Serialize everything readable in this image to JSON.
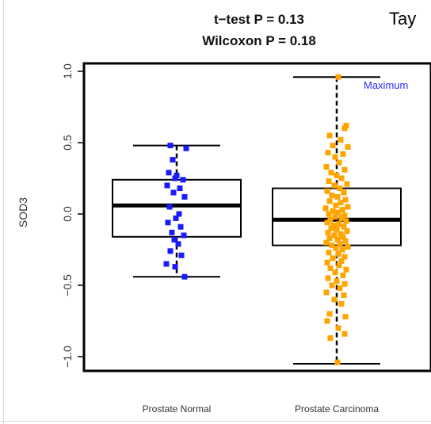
{
  "chart_data": {
    "type": "box",
    "title_lines": [
      "t−test P = 0.13",
      "Wilcoxon P = 0.18"
    ],
    "corner_text": "Tay",
    "ylabel": "SOD3",
    "ylim": [
      -1.2,
      1.1
    ],
    "yticks": [
      -1.0,
      -0.5,
      0.0,
      0.5,
      1.0
    ],
    "ytick_labels": [
      "−1.0",
      "−0.5",
      "0.0",
      "0.5",
      "1.0"
    ],
    "annotation": {
      "text": "Maximum",
      "color": "#2b2bff"
    },
    "categories": [
      "Prostate Normal",
      "Prostate Carcinoma"
    ],
    "series": [
      {
        "color": "#1a1aff",
        "box": {
          "whisker_low": -0.44,
          "q1": -0.16,
          "median": 0.06,
          "q3": 0.24,
          "whisker_high": 0.48
        },
        "points": [
          {
            "dx": -0.08,
            "y": 0.48
          },
          {
            "dx": 0.12,
            "y": 0.46
          },
          {
            "dx": -0.05,
            "y": 0.38
          },
          {
            "dx": -0.1,
            "y": 0.29
          },
          {
            "dx": 0.0,
            "y": 0.27
          },
          {
            "dx": -0.02,
            "y": 0.25
          },
          {
            "dx": 0.08,
            "y": 0.24
          },
          {
            "dx": -0.12,
            "y": 0.2
          },
          {
            "dx": 0.04,
            "y": 0.18
          },
          {
            "dx": -0.04,
            "y": 0.15
          },
          {
            "dx": 0.1,
            "y": 0.12
          },
          {
            "dx": -0.09,
            "y": 0.05
          },
          {
            "dx": 0.03,
            "y": 0.0
          },
          {
            "dx": -0.01,
            "y": -0.03
          },
          {
            "dx": -0.11,
            "y": -0.06
          },
          {
            "dx": 0.05,
            "y": -0.09
          },
          {
            "dx": -0.06,
            "y": -0.13
          },
          {
            "dx": 0.09,
            "y": -0.15
          },
          {
            "dx": -0.03,
            "y": -0.18
          },
          {
            "dx": 0.02,
            "y": -0.21
          },
          {
            "dx": -0.08,
            "y": -0.26
          },
          {
            "dx": 0.06,
            "y": -0.29
          },
          {
            "dx": -0.13,
            "y": -0.35
          },
          {
            "dx": -0.02,
            "y": -0.37
          },
          {
            "dx": 0.1,
            "y": -0.44
          }
        ]
      },
      {
        "color": "#ffa500",
        "box": {
          "whisker_low": -1.05,
          "q1": -0.22,
          "median": -0.04,
          "q3": 0.18,
          "whisker_high": 0.96
        },
        "points": [
          {
            "dx": 0.02,
            "y": 0.96
          },
          {
            "dx": 0.12,
            "y": 0.62
          },
          {
            "dx": 0.1,
            "y": 0.6
          },
          {
            "dx": -0.09,
            "y": 0.55
          },
          {
            "dx": 0.05,
            "y": 0.52
          },
          {
            "dx": -0.05,
            "y": 0.48
          },
          {
            "dx": 0.14,
            "y": 0.47
          },
          {
            "dx": -0.11,
            "y": 0.43
          },
          {
            "dx": 0.08,
            "y": 0.42
          },
          {
            "dx": -0.02,
            "y": 0.4
          },
          {
            "dx": 0.03,
            "y": 0.36
          },
          {
            "dx": -0.13,
            "y": 0.33
          },
          {
            "dx": 0.1,
            "y": 0.31
          },
          {
            "dx": -0.07,
            "y": 0.29
          },
          {
            "dx": 0.0,
            "y": 0.27
          },
          {
            "dx": 0.06,
            "y": 0.25
          },
          {
            "dx": -0.1,
            "y": 0.23
          },
          {
            "dx": 0.13,
            "y": 0.21
          },
          {
            "dx": -0.03,
            "y": 0.2
          },
          {
            "dx": 0.04,
            "y": 0.18
          },
          {
            "dx": -0.12,
            "y": 0.16
          },
          {
            "dx": 0.09,
            "y": 0.15
          },
          {
            "dx": -0.06,
            "y": 0.13
          },
          {
            "dx": 0.01,
            "y": 0.12
          },
          {
            "dx": 0.11,
            "y": 0.1
          },
          {
            "dx": -0.09,
            "y": 0.09
          },
          {
            "dx": 0.05,
            "y": 0.08
          },
          {
            "dx": -0.01,
            "y": 0.06
          },
          {
            "dx": 0.14,
            "y": 0.05
          },
          {
            "dx": -0.14,
            "y": 0.04
          },
          {
            "dx": 0.07,
            "y": 0.03
          },
          {
            "dx": -0.05,
            "y": 0.02
          },
          {
            "dx": 0.02,
            "y": 0.01
          },
          {
            "dx": -0.1,
            "y": 0.0
          },
          {
            "dx": 0.1,
            "y": -0.01
          },
          {
            "dx": -0.02,
            "y": -0.02
          },
          {
            "dx": 0.06,
            "y": -0.03
          },
          {
            "dx": -0.08,
            "y": -0.04
          },
          {
            "dx": 0.12,
            "y": -0.05
          },
          {
            "dx": -0.12,
            "y": -0.06
          },
          {
            "dx": 0.03,
            "y": -0.07
          },
          {
            "dx": -0.04,
            "y": -0.08
          },
          {
            "dx": 0.09,
            "y": -0.09
          },
          {
            "dx": -0.07,
            "y": -0.1
          },
          {
            "dx": 0.0,
            "y": -0.11
          },
          {
            "dx": 0.13,
            "y": -0.12
          },
          {
            "dx": -0.11,
            "y": -0.13
          },
          {
            "dx": 0.05,
            "y": -0.14
          },
          {
            "dx": -0.03,
            "y": -0.15
          },
          {
            "dx": 0.08,
            "y": -0.16
          },
          {
            "dx": -0.09,
            "y": -0.17
          },
          {
            "dx": 0.01,
            "y": -0.18
          },
          {
            "dx": 0.11,
            "y": -0.19
          },
          {
            "dx": -0.13,
            "y": -0.2
          },
          {
            "dx": 0.04,
            "y": -0.21
          },
          {
            "dx": -0.06,
            "y": -0.22
          },
          {
            "dx": 0.14,
            "y": -0.23
          },
          {
            "dx": -0.01,
            "y": -0.24
          },
          {
            "dx": 0.07,
            "y": -0.25
          },
          {
            "dx": -0.1,
            "y": -0.27
          },
          {
            "dx": 0.02,
            "y": -0.28
          },
          {
            "dx": 0.1,
            "y": -0.3
          },
          {
            "dx": -0.05,
            "y": -0.31
          },
          {
            "dx": 0.06,
            "y": -0.33
          },
          {
            "dx": -0.12,
            "y": -0.34
          },
          {
            "dx": 0.03,
            "y": -0.36
          },
          {
            "dx": -0.08,
            "y": -0.38
          },
          {
            "dx": 0.12,
            "y": -0.39
          },
          {
            "dx": -0.02,
            "y": -0.41
          },
          {
            "dx": 0.08,
            "y": -0.43
          },
          {
            "dx": -0.11,
            "y": -0.45
          },
          {
            "dx": 0.0,
            "y": -0.47
          },
          {
            "dx": 0.1,
            "y": -0.49
          },
          {
            "dx": -0.06,
            "y": -0.5
          },
          {
            "dx": 0.04,
            "y": -0.52
          },
          {
            "dx": -0.13,
            "y": -0.55
          },
          {
            "dx": 0.09,
            "y": -0.57
          },
          {
            "dx": -0.03,
            "y": -0.6
          },
          {
            "dx": 0.06,
            "y": -0.63
          },
          {
            "dx": -0.09,
            "y": -0.7
          },
          {
            "dx": 0.11,
            "y": -0.72
          },
          {
            "dx": -0.12,
            "y": -0.75
          },
          {
            "dx": 0.02,
            "y": -0.8
          },
          {
            "dx": 0.1,
            "y": -0.84
          },
          {
            "dx": -0.08,
            "y": -0.87
          },
          {
            "dx": 0.01,
            "y": -1.04
          }
        ]
      }
    ]
  }
}
